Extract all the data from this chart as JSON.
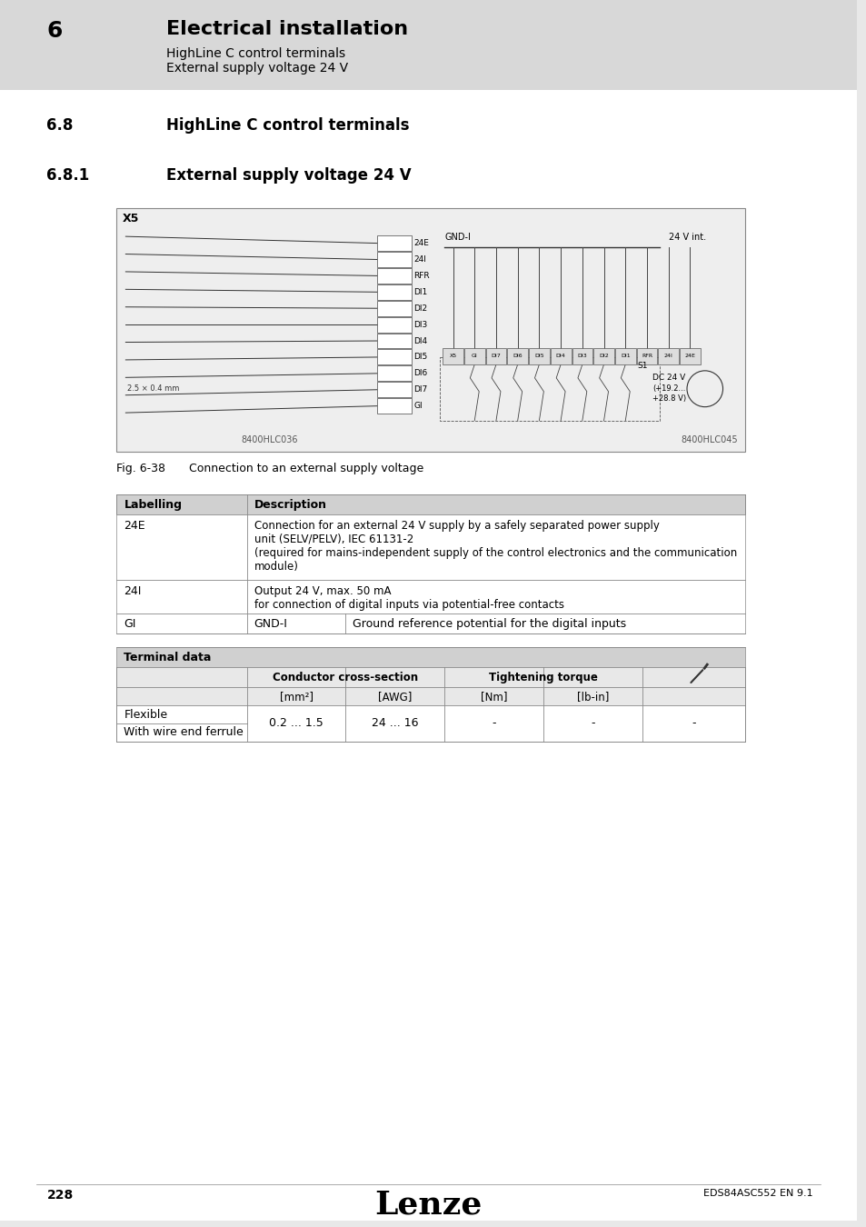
{
  "page_bg": "#e8e8e8",
  "content_bg": "#ffffff",
  "header_bg": "#d8d8d8",
  "table_header_bg": "#d0d0d0",
  "diagram_bg": "#eeeeee",
  "border_color": "#888888",
  "text_color": "#000000",
  "chapter_num": "6",
  "chapter_title": "Electrical installation",
  "chapter_sub1": "HighLine C control terminals",
  "chapter_sub2": "External supply voltage 24 V",
  "section_num": "6.8",
  "section_title": "HighLine C control terminals",
  "subsection_num": "6.8.1",
  "subsection_title": "External supply voltage 24 V",
  "fig_caption_num": "Fig. 6-38",
  "fig_caption_text": "Connection to an external supply voltage",
  "label_col_header": "Labelling",
  "desc_col_header": "Description",
  "row24e_label": "24E",
  "row24e_desc": "Connection for an external 24 V supply by a safely separated power supply\nunit (SELV/PELV), IEC 61131-2\n(required for mains-independent supply of the control electronics and the communication\nmodule)",
  "row24i_label": "24I",
  "row24i_desc": "Output 24 V, max. 50 mA\nfor connection of digital inputs via potential-free contacts",
  "rowgi_label": "GI",
  "rowgi_col1": "GND-I",
  "rowgi_col2": "Ground reference potential for the digital inputs",
  "terminal_data_header": "Terminal data",
  "conductor_header": "Conductor cross-section",
  "tightening_header": "Tightening torque",
  "col_mm2": "[mm²]",
  "col_awg": "[AWG]",
  "col_nm": "[Nm]",
  "col_lbin": "[lb-in]",
  "row_flexible": "Flexible",
  "row_ferrule": "With wire end ferrule",
  "val_mm2": "0.2 ... 1.5",
  "val_awg": "24 ... 16",
  "val_dash": "-",
  "code_left": "8400HLC036",
  "code_right": "8400HLC045",
  "x5_label": "X5",
  "gndi_label": "GND-I",
  "v24int_label": "24 V int.",
  "dc24v_label": "DC 24 V\n(+19.2...\n+28.8 V)",
  "s1_label": "S1",
  "size_label": "2.5 × 0.4 mm",
  "terminal_row": [
    "X5",
    "GI",
    "DI7",
    "DI6",
    "DI5",
    "DI4",
    "DI3",
    "DI2",
    "DI1",
    "RFR",
    "24I",
    "24E"
  ],
  "terminal_col_labels": [
    "24E",
    "24I",
    "RFR",
    "DI1",
    "DI2",
    "DI3",
    "DI4",
    "DI5",
    "DI6",
    "DI7",
    "GI"
  ],
  "page_num": "228",
  "footer_right": "EDS84ASC552 EN 9.1",
  "footer_logo": "Lenze"
}
